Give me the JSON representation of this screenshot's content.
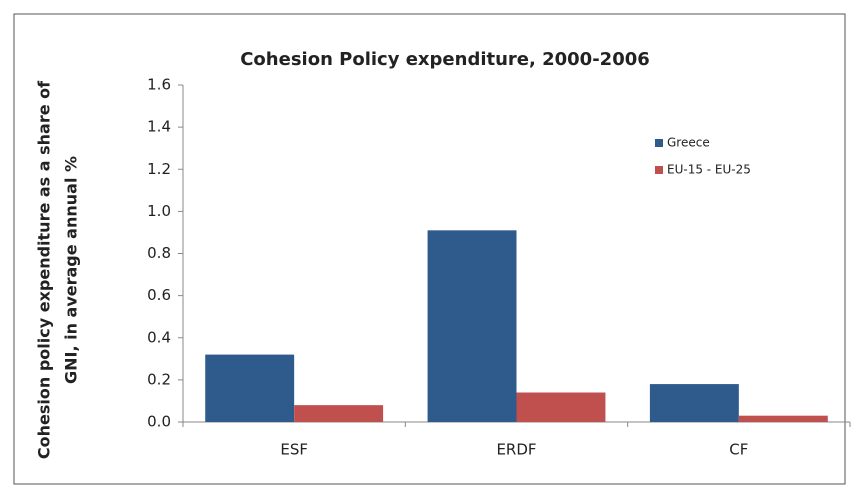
{
  "chart_data": {
    "type": "bar",
    "title": "Cohesion Policy expenditure, 2000-2006",
    "y_label": [
      "Cohesion policy expenditure as a share of",
      "GNI, in average annual %"
    ],
    "categories": [
      "ESF",
      "ERDF",
      "CF"
    ],
    "series": [
      {
        "name": "Greece",
        "color": "#2f5a8c",
        "values": [
          0.32,
          0.91,
          0.18
        ]
      },
      {
        "name": "EU-15 - EU-25",
        "color": "#c0504d",
        "values": [
          0.08,
          0.14,
          0.03
        ]
      }
    ],
    "ylim": [
      0,
      1.6
    ],
    "yticks": [
      {
        "value": 0,
        "label": "0.0"
      },
      0.2,
      0.4,
      0.6,
      0.8,
      {
        "value": 1,
        "label": "1.0"
      },
      1.2,
      1.4,
      1.6
    ],
    "grid": false,
    "legend": "upper right"
  }
}
